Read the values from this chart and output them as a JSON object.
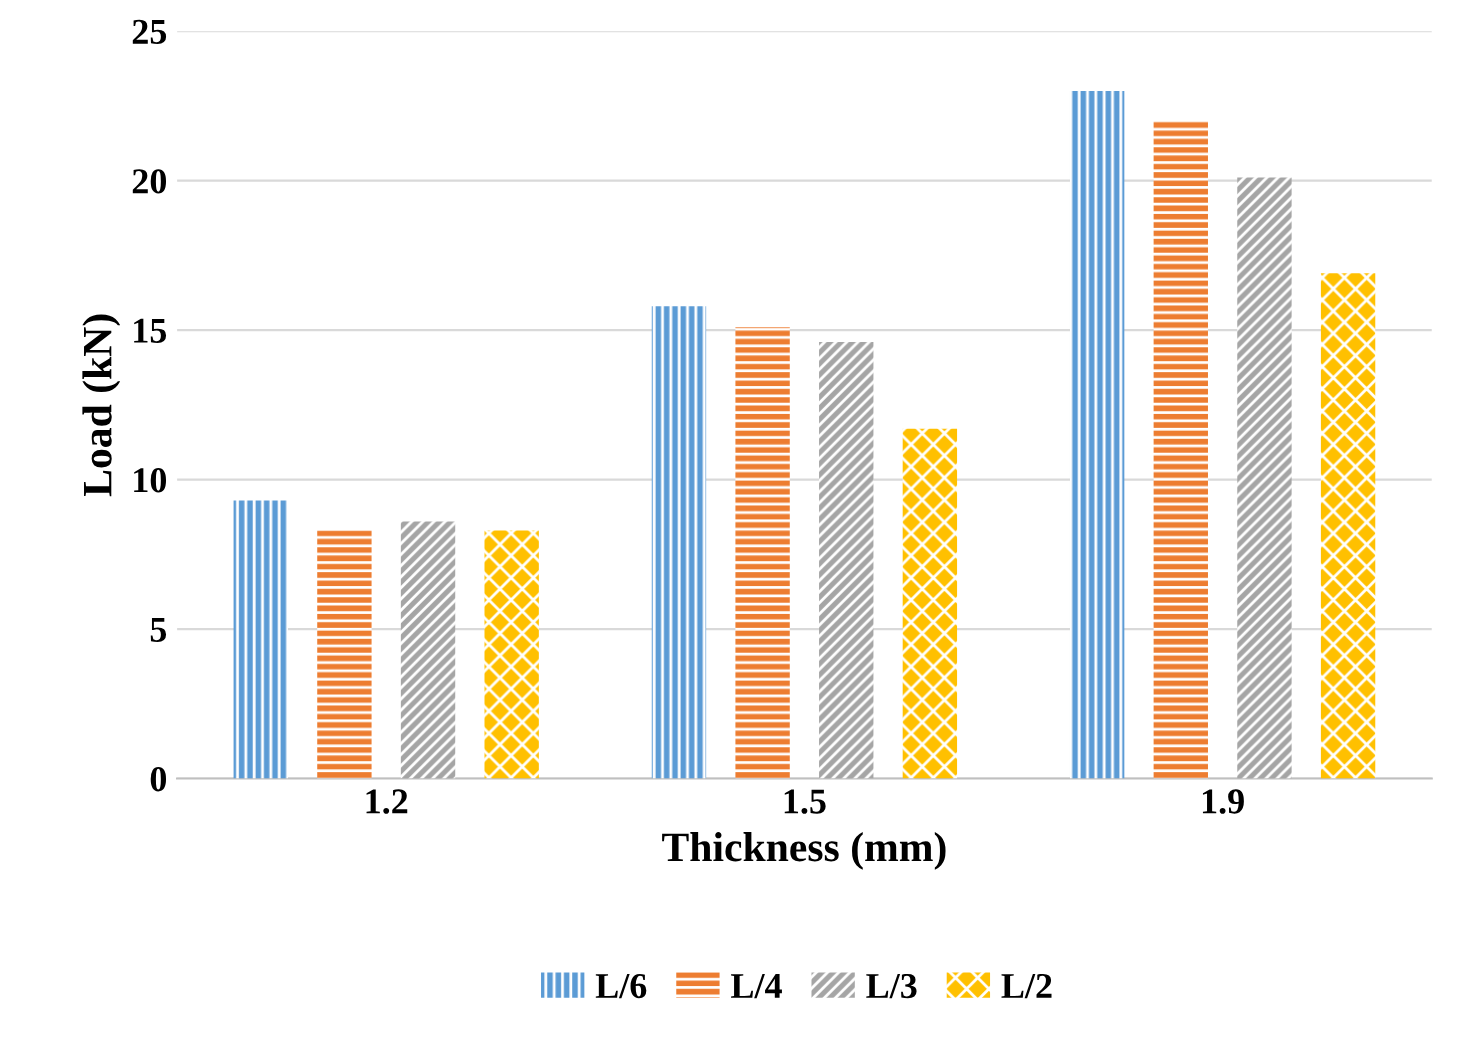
{
  "chart_data": {
    "type": "bar",
    "xlabel": "Thickness (mm)",
    "ylabel": "Load (kN)",
    "categories": [
      "1.2",
      "1.5",
      "1.9"
    ],
    "series": [
      {
        "name": "L/6",
        "color": "#5b9bd5",
        "values": [
          9.3,
          15.8,
          23.0
        ]
      },
      {
        "name": "L/4",
        "color": "#ed7d31",
        "values": [
          8.3,
          15.1,
          22.0
        ]
      },
      {
        "name": "L/3",
        "color": "#a5a5a5",
        "values": [
          8.6,
          14.6,
          20.1
        ]
      },
      {
        "name": "L/2",
        "color": "#ffc000",
        "values": [
          8.3,
          11.7,
          16.9
        ]
      }
    ],
    "ylim": [
      0,
      25
    ],
    "yticks": [
      0,
      5,
      10,
      15,
      20,
      25
    ],
    "grid": "y",
    "legend": "bottom"
  }
}
